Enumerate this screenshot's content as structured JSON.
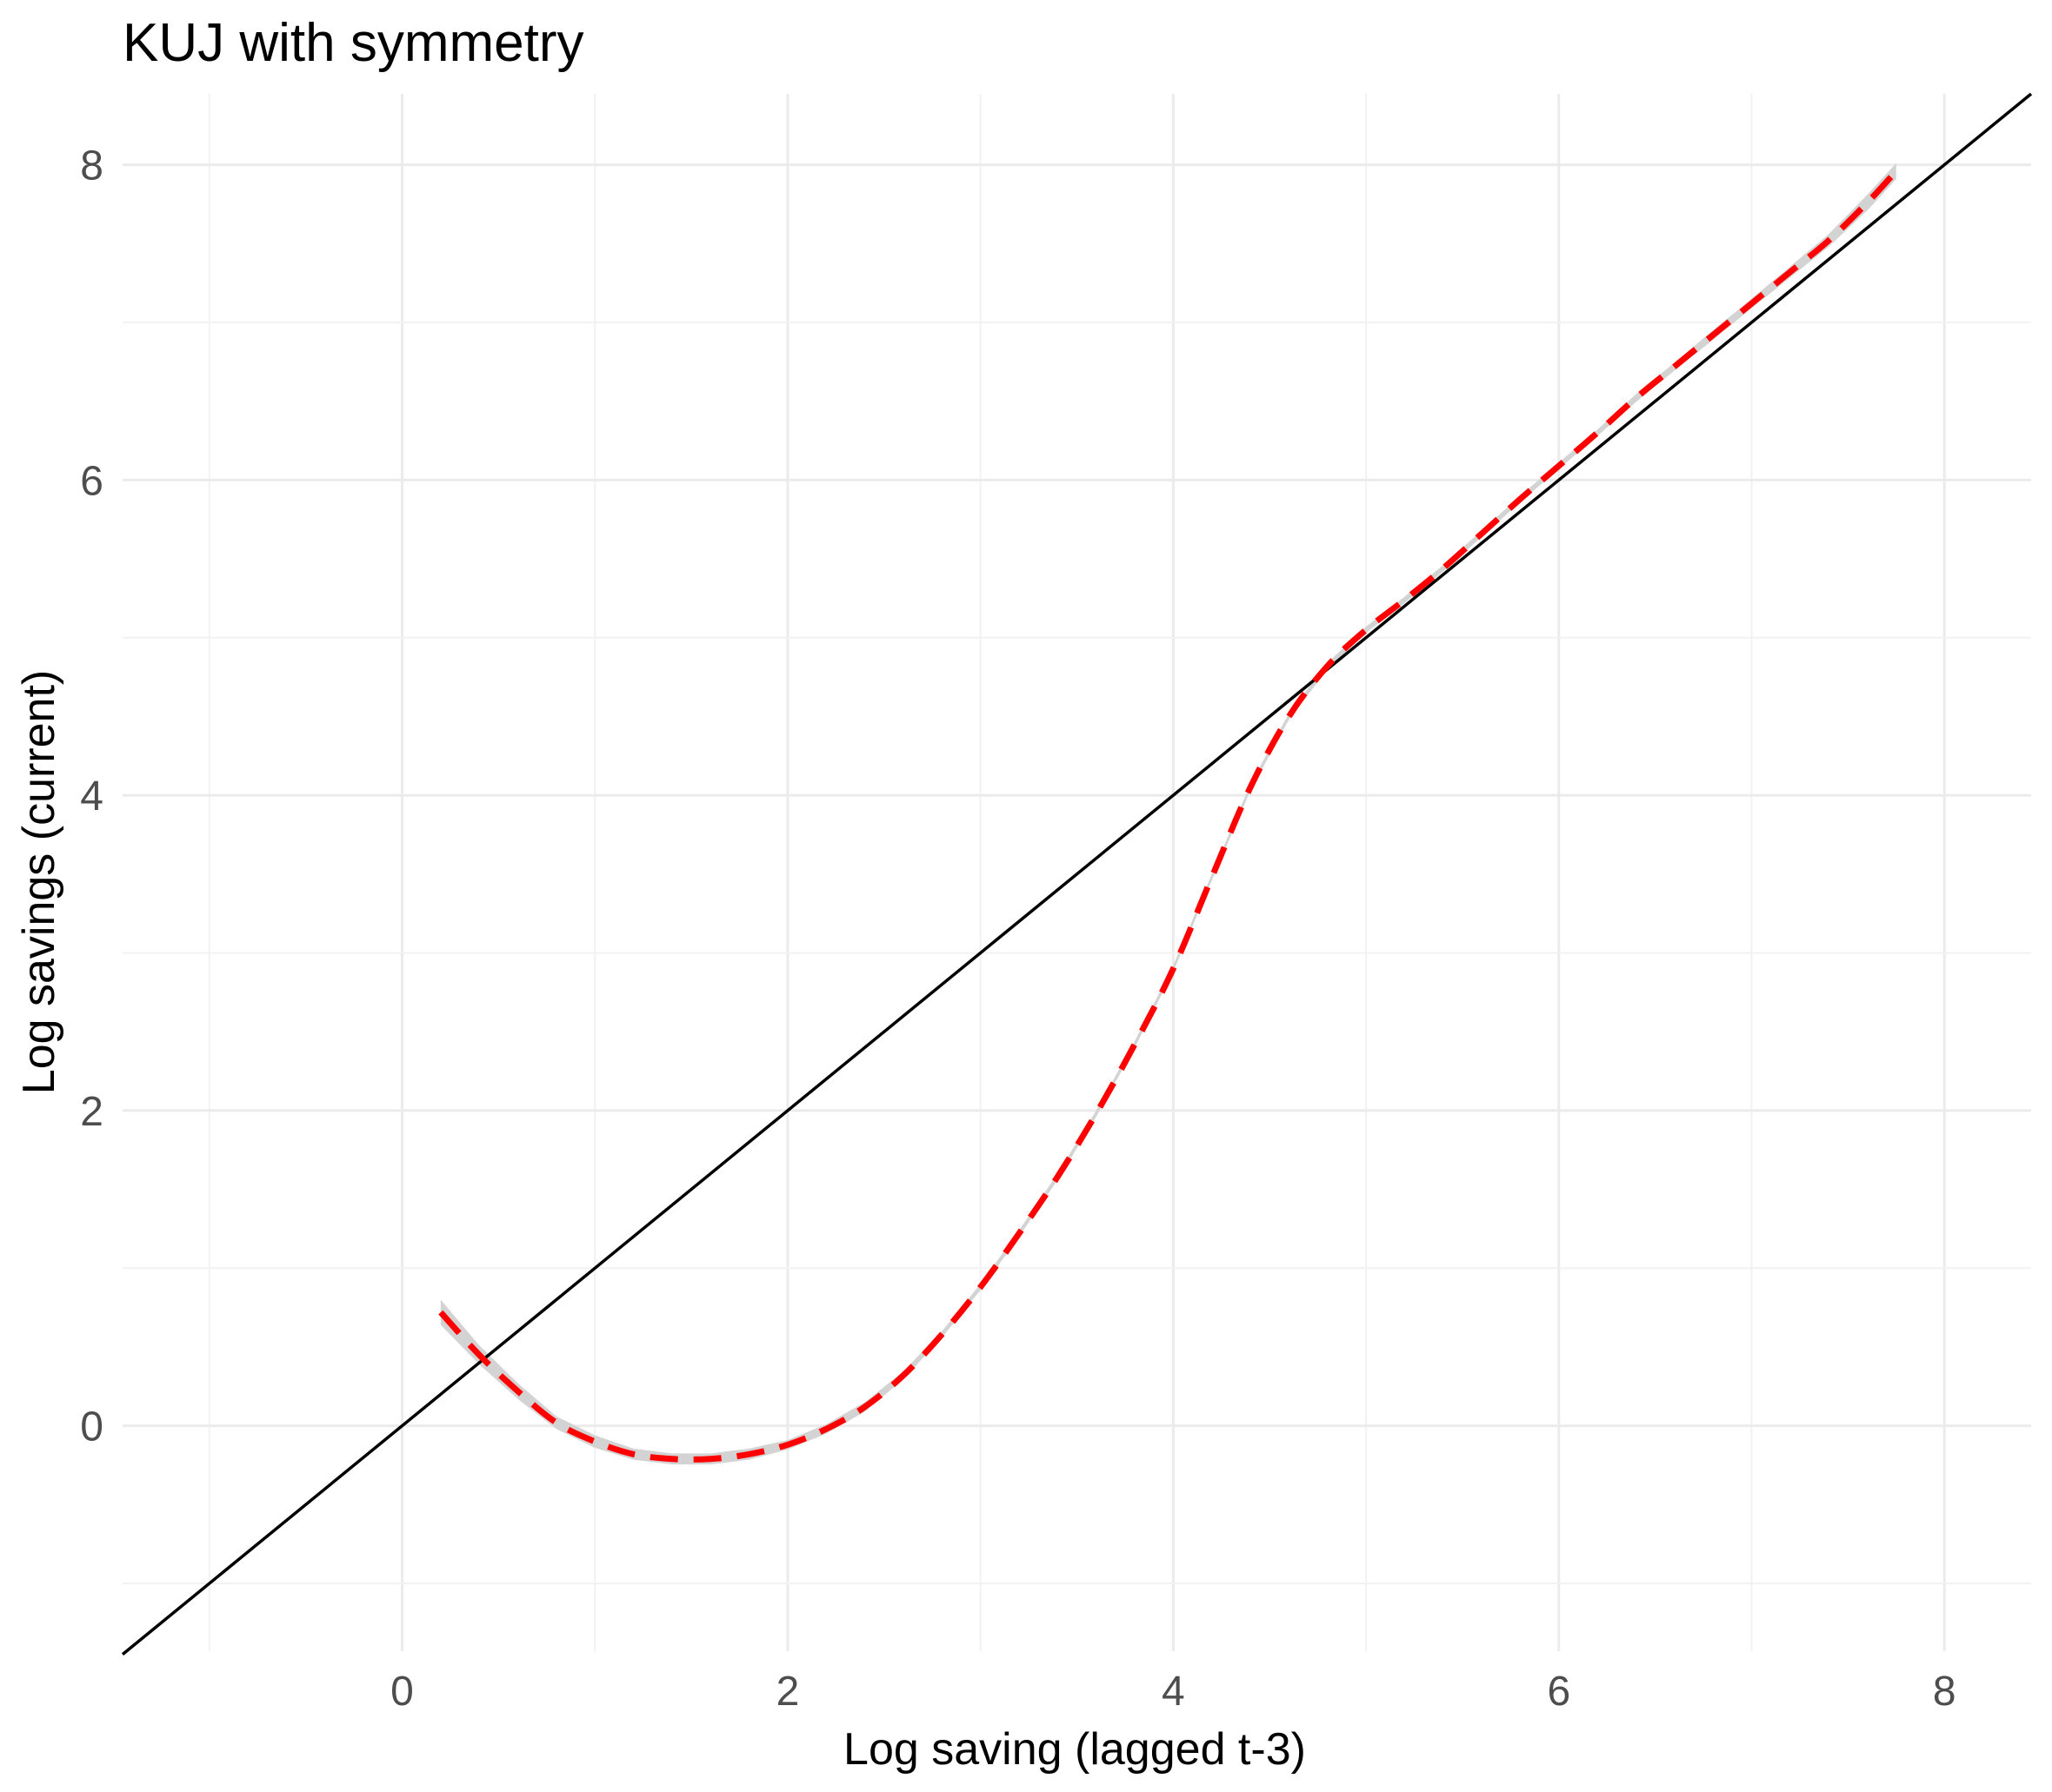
{
  "chart_data": {
    "type": "line",
    "title": "KUJ with symmetry",
    "xlabel": "Log saving (lagged t-3)",
    "ylabel": "Log savings (current)",
    "xlim": [
      -1.45,
      8.45
    ],
    "ylim": [
      -1.43,
      8.45
    ],
    "x_ticks": [
      0,
      2,
      4,
      6,
      8
    ],
    "y_ticks": [
      0,
      2,
      4,
      6,
      8
    ],
    "x_tick_labels": [
      "0",
      "2",
      "4",
      "6",
      "8"
    ],
    "y_tick_labels": [
      "0",
      "2",
      "4",
      "6",
      "8"
    ],
    "grid": true,
    "legend": "none",
    "colors": {
      "fit": "#ff0000",
      "band": "#d3d3d3",
      "identity": "#000000",
      "grid": "#ebebeb"
    },
    "series": [
      {
        "style": "identity-line-solid",
        "x": [
          -1.45,
          8.45
        ],
        "y": [
          -1.45,
          8.45
        ]
      },
      {
        "style": "fitted-dashed",
        "x": [
          0.2,
          0.4,
          0.6,
          0.8,
          1.0,
          1.2,
          1.4,
          1.6,
          1.8,
          2.0,
          2.2,
          2.4,
          2.6,
          2.8,
          3.0,
          3.2,
          3.4,
          3.6,
          3.8,
          4.0,
          4.2,
          4.4,
          4.6,
          4.8,
          5.0,
          5.2,
          5.4,
          5.6,
          5.8,
          6.0,
          6.2,
          6.4,
          6.6,
          6.8,
          7.0,
          7.2,
          7.4,
          7.6,
          7.75
        ],
        "y": [
          0.72,
          0.45,
          0.22,
          0.02,
          -0.1,
          -0.18,
          -0.21,
          -0.21,
          -0.18,
          -0.12,
          -0.02,
          0.12,
          0.32,
          0.58,
          0.88,
          1.22,
          1.58,
          1.98,
          2.42,
          2.9,
          3.48,
          4.05,
          4.5,
          4.82,
          5.05,
          5.24,
          5.44,
          5.66,
          5.88,
          6.09,
          6.3,
          6.52,
          6.72,
          6.92,
          7.12,
          7.32,
          7.52,
          7.76,
          7.96
        ],
        "band_halfwidth": [
          0.08,
          0.06,
          0.05,
          0.04,
          0.04,
          0.035,
          0.035,
          0.035,
          0.035,
          0.03,
          0.03,
          0.03,
          0.025,
          0.02,
          0.02,
          0.02,
          0.02,
          0.02,
          0.02,
          0.02,
          0.02,
          0.02,
          0.02,
          0.02,
          0.02,
          0.02,
          0.02,
          0.02,
          0.02,
          0.02,
          0.02,
          0.025,
          0.025,
          0.03,
          0.03,
          0.035,
          0.04,
          0.05,
          0.05
        ]
      }
    ]
  }
}
